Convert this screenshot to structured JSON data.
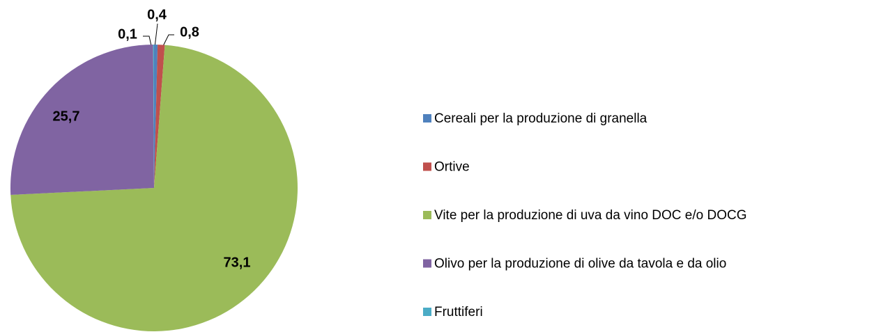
{
  "chart_data": {
    "type": "pie",
    "categories": [
      "Cereali per la produzione di granella",
      "Ortive",
      "Vite per la produzione di uva da vino DOC e/o DOCG",
      "Olivo per la produzione di olive da tavola e da olio",
      "Fruttiferi"
    ],
    "values": [
      0.4,
      0.8,
      73.1,
      25.7,
      0.1
    ],
    "value_labels": [
      "0,4",
      "0,8",
      "73,1",
      "25,7",
      "0,1"
    ],
    "colors": [
      "#4f81bd",
      "#c0504d",
      "#9bbb59",
      "#8064a2",
      "#4bacc6"
    ],
    "legend": "right"
  }
}
